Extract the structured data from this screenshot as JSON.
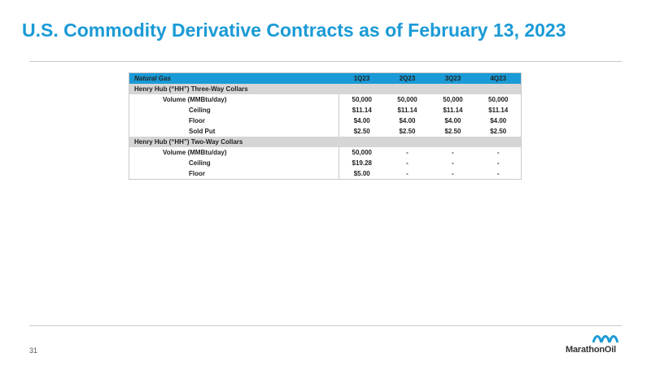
{
  "slide": {
    "title": "U.S. Commodity Derivative Contracts as of February 13, 2023",
    "page_number": "31"
  },
  "logo": {
    "text": "MarathonOil",
    "icon": "marathon-oil-logo-icon",
    "color": "#1a9ad6"
  },
  "table": {
    "header": {
      "label": "Natural Gas",
      "quarters": [
        "1Q23",
        "2Q23",
        "3Q23",
        "4Q23"
      ]
    },
    "sections": [
      {
        "title": "Henry Hub (“HH”) Three-Way Collars",
        "rows": [
          {
            "label": "Volume (MMBtu/day)",
            "values": [
              "50,000",
              "50,000",
              "50,000",
              "50,000"
            ]
          },
          {
            "label": "Ceiling",
            "values": [
              "$11.14",
              "$11.14",
              "$11.14",
              "$11.14"
            ]
          },
          {
            "label": "Floor",
            "values": [
              "$4.00",
              "$4.00",
              "$4.00",
              "$4.00"
            ]
          },
          {
            "label": "Sold Put",
            "values": [
              "$2.50",
              "$2.50",
              "$2.50",
              "$2.50"
            ]
          }
        ]
      },
      {
        "title": "Henry Hub (“HH”) Two-Way Collars",
        "rows": [
          {
            "label": "Volume (MMBtu/day)",
            "values": [
              "50,000",
              "-",
              "-",
              "-"
            ]
          },
          {
            "label": "Ceiling",
            "values": [
              "$19.28",
              "-",
              "-",
              "-"
            ]
          },
          {
            "label": "Floor",
            "values": [
              "$5.00",
              "-",
              "-",
              "-"
            ]
          }
        ]
      }
    ]
  }
}
